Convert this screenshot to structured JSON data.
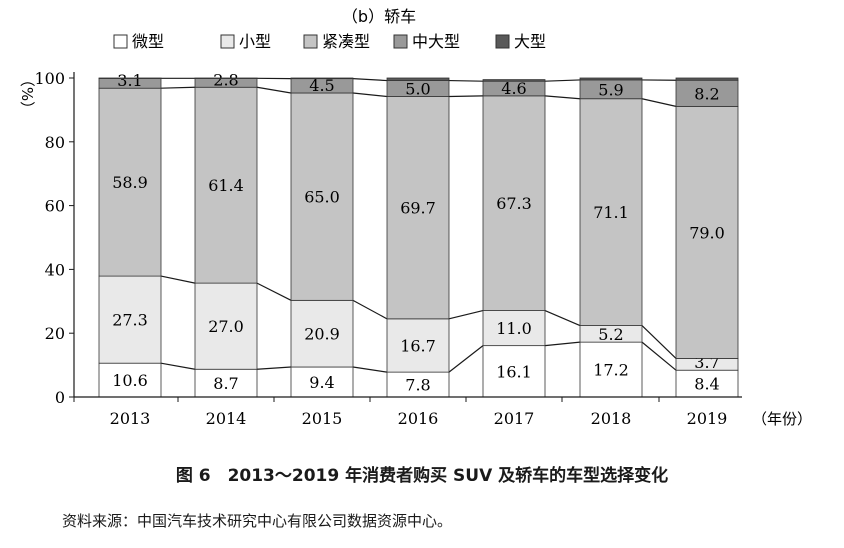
{
  "chart_data": {
    "type": "bar",
    "stacked": true,
    "title": "（b）轿车",
    "ylabel": "（%）",
    "xlabel": "（年份）",
    "ylim": [
      0,
      100
    ],
    "yticks": [
      0,
      20,
      40,
      60,
      80,
      100
    ],
    "grid": false,
    "legend_position": "top",
    "categories": [
      "2013",
      "2014",
      "2015",
      "2016",
      "2017",
      "2018",
      "2019"
    ],
    "series": [
      {
        "name": "微型",
        "color": "#ffffff",
        "values": [
          10.6,
          8.7,
          9.4,
          7.8,
          16.1,
          17.2,
          8.4
        ]
      },
      {
        "name": "小型",
        "color": "#e9e9e9",
        "values": [
          27.3,
          27.0,
          20.9,
          16.7,
          11.0,
          5.2,
          3.7
        ]
      },
      {
        "name": "紧凑型",
        "color": "#c4c4c4",
        "values": [
          58.9,
          61.4,
          65.0,
          69.7,
          67.3,
          71.1,
          79.0
        ]
      },
      {
        "name": "中大型",
        "color": "#999999",
        "values": [
          3.1,
          2.8,
          4.5,
          5.0,
          4.6,
          5.9,
          8.2
        ]
      },
      {
        "name": "大型",
        "color": "#595959",
        "values": [
          0.1,
          0.1,
          0.2,
          0.8,
          0.5,
          0.6,
          0.7
        ]
      }
    ],
    "data_labels": [
      [
        "10.6",
        "8.7",
        "9.4",
        "7.8",
        "16.1",
        "17.2",
        "8.4"
      ],
      [
        "27.3",
        "27.0",
        "20.9",
        "16.7",
        "11.0",
        "5.2",
        "3.7"
      ],
      [
        "58.9",
        "61.4",
        "65.0",
        "69.7",
        "67.3",
        "71.1",
        "79.0"
      ],
      [
        "3.1",
        "2.8",
        "4.5",
        "5.0",
        "4.6",
        "5.9",
        "8.2"
      ],
      [
        "",
        "",
        "",
        "",
        "",
        "",
        ""
      ]
    ]
  },
  "caption": "图 6　2013～2019 年消费者购买 SUV 及轿车的车型选择变化",
  "source": "资料来源：中国汽车技术研究中心有限公司数据资源中心。"
}
